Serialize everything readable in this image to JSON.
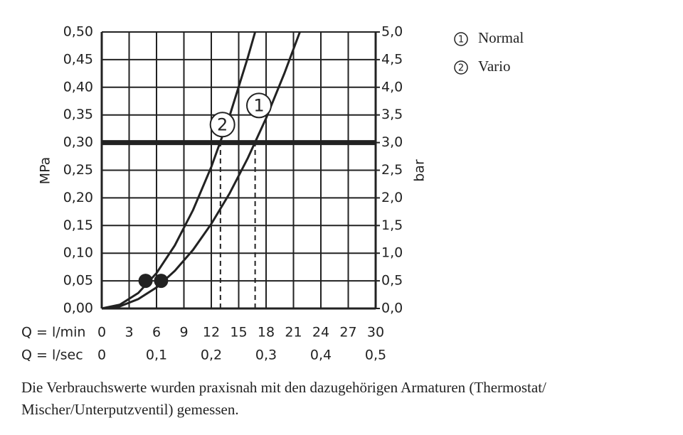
{
  "chart_data": {
    "type": "line",
    "y_label": "MPa",
    "y2_label": "bar",
    "x_label": "Q = l/min",
    "x2_label": "Q = l/sec",
    "xlim": [
      0,
      30
    ],
    "xticks": [
      0,
      3,
      6,
      9,
      12,
      15,
      18,
      21,
      24,
      27,
      30
    ],
    "x2lim": [
      0,
      0.5
    ],
    "x2ticks": [
      0,
      {
        "value": 0.1,
        "label": "0,1"
      },
      {
        "value": 0.2,
        "label": "0,2"
      },
      {
        "value": 0.3,
        "label": "0,3"
      },
      {
        "value": 0.4,
        "label": "0,4"
      },
      {
        "value": 0.5,
        "label": "0,5"
      }
    ],
    "ylim": [
      0,
      0.5
    ],
    "yticks": [
      {
        "value": 0,
        "label": "0,00"
      },
      {
        "value": 0.05,
        "label": "0,05"
      },
      {
        "value": 0.1,
        "label": "0,10"
      },
      {
        "value": 0.15,
        "label": "0,15"
      },
      {
        "value": 0.2,
        "label": "0,20"
      },
      {
        "value": 0.25,
        "label": "0,25"
      },
      {
        "value": 0.3,
        "label": "0,30"
      },
      {
        "value": 0.35,
        "label": "0,35"
      },
      {
        "value": 0.4,
        "label": "0,40"
      },
      {
        "value": 0.45,
        "label": "0,45"
      },
      {
        "value": 0.5,
        "label": "0,50"
      }
    ],
    "y2lim": [
      0,
      5
    ],
    "y2ticks": [
      {
        "value": 0,
        "label": "0,0"
      },
      {
        "value": 0.5,
        "label": "0,5"
      },
      {
        "value": 1,
        "label": "1,0"
      },
      {
        "value": 1.5,
        "label": "1,5"
      },
      {
        "value": 2,
        "label": "2,0"
      },
      {
        "value": 2.5,
        "label": "2,5"
      },
      {
        "value": 3,
        "label": "3,0"
      },
      {
        "value": 3.5,
        "label": "3,5"
      },
      {
        "value": 4,
        "label": "4,0"
      },
      {
        "value": 4.5,
        "label": "4,5"
      },
      {
        "value": 5,
        "label": "5,0"
      }
    ],
    "grid": true,
    "series": [
      {
        "name": "Normal",
        "number": "1",
        "color": "#222222",
        "x": [
          0,
          2,
          4,
          6,
          8,
          10,
          12,
          14,
          16,
          18,
          20,
          21.7
        ],
        "values": [
          0,
          0.004,
          0.017,
          0.038,
          0.068,
          0.106,
          0.153,
          0.208,
          0.272,
          0.344,
          0.425,
          0.5
        ]
      },
      {
        "name": "Vario",
        "number": "2",
        "color": "#222222",
        "x": [
          0,
          2,
          4,
          6,
          8,
          10,
          12,
          14,
          16,
          16.8
        ],
        "values": [
          0,
          0.007,
          0.028,
          0.064,
          0.114,
          0.178,
          0.256,
          0.348,
          0.454,
          0.5
        ]
      }
    ],
    "markers": {
      "x": [
        4.8,
        6.5
      ],
      "values": [
        0.05,
        0.05
      ]
    },
    "reference_y": 0.3,
    "reference_x": [
      13,
      16.8
    ],
    "footnote": [
      "Die Verbrauchswerte wurden praxisnah mit den dazugehörigen Armaturen (Thermostat/",
      "Mischer/Unterputzventil) gemessen."
    ]
  }
}
